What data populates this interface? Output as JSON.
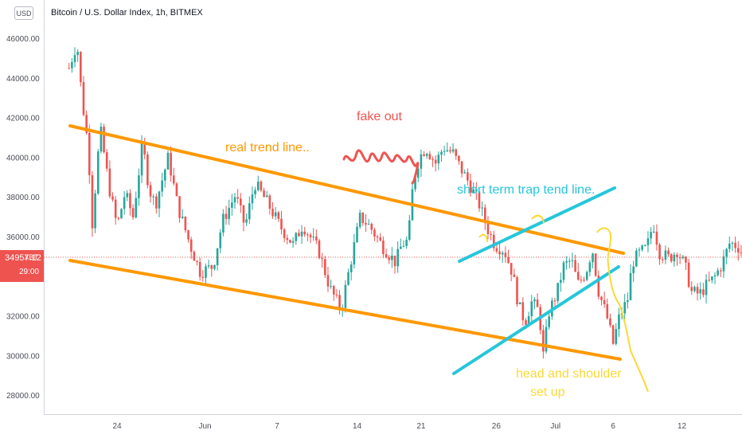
{
  "header": {
    "currency_button": "USD",
    "title": "Bitcoin / U.S. Dollar Index, 1h, BITMEX"
  },
  "price_tag": {
    "price": "34957.12",
    "symbol": "XBT",
    "countdown": "29:00"
  },
  "chart_data": {
    "type": "candlestick",
    "y_axis": {
      "ticks": [
        "46000.00",
        "44000.00",
        "42000.00",
        "40000.00",
        "38000.00",
        "36000.00",
        "32000.00",
        "30000.00",
        "28000.00"
      ],
      "range": [
        27200,
        47000
      ]
    },
    "x_axis": {
      "ticks": [
        "24",
        "Jun",
        "7",
        "14",
        "21",
        "26",
        "Jul",
        "6",
        "12"
      ]
    },
    "current_price": 34957.12,
    "price_path": [
      [
        -3,
        44500
      ],
      [
        -2.5,
        45800
      ],
      [
        -2.2,
        43000
      ],
      [
        -1.8,
        40500
      ],
      [
        -1.5,
        36000
      ],
      [
        -1.3,
        39500
      ],
      [
        -1.0,
        41200
      ],
      [
        -0.5,
        38500
      ],
      [
        0,
        36500
      ],
      [
        0.5,
        38200
      ],
      [
        1,
        37000
      ],
      [
        1.6,
        40700
      ],
      [
        2,
        38400
      ],
      [
        2.4,
        37600
      ],
      [
        3.2,
        40000
      ],
      [
        3.8,
        37500
      ],
      [
        4.6,
        35500
      ],
      [
        5.2,
        34200
      ],
      [
        6,
        34500
      ],
      [
        6.6,
        36800
      ],
      [
        7.4,
        38100
      ],
      [
        8,
        36500
      ],
      [
        8.6,
        38700
      ],
      [
        9.4,
        37700
      ],
      [
        10.2,
        36500
      ],
      [
        11,
        35600
      ],
      [
        11.6,
        36600
      ],
      [
        12.6,
        35300
      ],
      [
        13.3,
        33400
      ],
      [
        14,
        32300
      ],
      [
        14.6,
        34700
      ],
      [
        15.2,
        37000
      ],
      [
        15.8,
        36500
      ],
      [
        16.6,
        35500
      ],
      [
        17.4,
        34700
      ],
      [
        17.8,
        35600
      ],
      [
        18.2,
        35800
      ],
      [
        18.5,
        38700
      ],
      [
        18.9,
        40000
      ],
      [
        19.3,
        40500
      ],
      [
        19.9,
        39700
      ],
      [
        20.4,
        40500
      ],
      [
        21,
        40200
      ],
      [
        21.5,
        39400
      ],
      [
        22,
        38700
      ],
      [
        22.6,
        37700
      ],
      [
        23.1,
        36500
      ],
      [
        23.6,
        35600
      ],
      [
        24.2,
        35300
      ],
      [
        24.7,
        34200
      ],
      [
        25.1,
        32500
      ],
      [
        25.5,
        31700
      ],
      [
        25.9,
        32700
      ],
      [
        26.4,
        32200
      ],
      [
        26.6,
        29800
      ],
      [
        27,
        32200
      ],
      [
        27.5,
        33200
      ],
      [
        27.9,
        34500
      ],
      [
        28.4,
        34800
      ],
      [
        28.8,
        33600
      ],
      [
        29.3,
        34200
      ],
      [
        29.7,
        35400
      ],
      [
        30.1,
        33200
      ],
      [
        30.6,
        32000
      ],
      [
        31,
        30600
      ],
      [
        31.4,
        32000
      ],
      [
        31.9,
        32800
      ],
      [
        32.2,
        34700
      ],
      [
        32.7,
        35200
      ],
      [
        33.1,
        35400
      ],
      [
        33.5,
        36700
      ],
      [
        33.9,
        35200
      ],
      [
        34.5,
        34900
      ],
      [
        35,
        35300
      ],
      [
        35.5,
        34500
      ],
      [
        35.9,
        33200
      ],
      [
        36.4,
        33100
      ],
      [
        36.9,
        33600
      ],
      [
        37.3,
        33900
      ],
      [
        37.8,
        34600
      ],
      [
        38.3,
        35700
      ],
      [
        38.8,
        35500
      ],
      [
        39.2,
        35000
      ]
    ],
    "annotations": [
      {
        "kind": "line",
        "color": "#ff9800",
        "role": "upper-channel",
        "from": [
          "Jun-21-approx",
          41500
        ],
        "to": [
          "Jul-7-approx",
          35100
        ]
      },
      {
        "kind": "line",
        "color": "#ff9800",
        "role": "lower-channel",
        "from": [
          "Jun-21-approx",
          34900
        ],
        "to": [
          "Jul-7-approx",
          29700
        ]
      },
      {
        "kind": "line",
        "color": "#26c6da",
        "role": "channel-top",
        "from": [
          "Jun-21",
          33100
        ],
        "to": [
          "Jul-7",
          38500
        ]
      },
      {
        "kind": "line",
        "color": "#26c6da",
        "role": "channel-bottom",
        "from": [
          "Jun-21",
          29100
        ],
        "to": [
          "Jul-7",
          34500
        ]
      },
      {
        "kind": "scribble",
        "color": "#ef5350",
        "role": "fake-out-marker"
      },
      {
        "kind": "scribble",
        "color": "#fdd835",
        "role": "projection"
      }
    ],
    "labels": {
      "real_trend": "real trend line..",
      "fake_out": "fake out",
      "short_term": "short term trap tend line.",
      "head_shoulder_1": "head and shoulder",
      "head_shoulder_2": "set up"
    },
    "colors": {
      "up": "#26a69a",
      "down": "#ef5350",
      "trend": "#ff9800",
      "short_term": "#26c6da",
      "fake_out": "#ef5350",
      "projection": "#fdd835",
      "axis_text": "#4a4e57"
    }
  }
}
